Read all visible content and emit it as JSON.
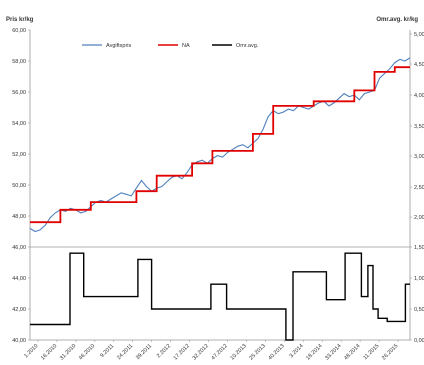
{
  "chart_data": {
    "type": "line",
    "left_axis_title": "Pris kr/kg",
    "right_axis_title": "Omr.avg. kr/kg",
    "legend": {
      "items": [
        {
          "label": "Avgiftspris",
          "color": "#4f81bd"
        },
        {
          "label": "NA",
          "color": "#e00000"
        },
        {
          "label": "Omr.avg.",
          "color": "#000000"
        }
      ],
      "placement": "top"
    },
    "left_ticks_top": [
      "60,00",
      "58,00",
      "56,00",
      "54,00",
      "52,00",
      "50,00",
      "48,00",
      "46,00"
    ],
    "left_ticks_bottom": [
      "44,00",
      "42,00",
      "40,00"
    ],
    "right_ticks": [
      "5,00",
      "4,50",
      "4,00",
      "3,50",
      "3,00",
      "2,50",
      "2,00",
      "1,50",
      "1,00",
      "0,50",
      "0,00"
    ],
    "x_labels": [
      "1.2010",
      "16.2010",
      "31.2010",
      "46.2010",
      "9.2011",
      "24.2011",
      "39.2011",
      "2.2012",
      "17.2012",
      "32.2012",
      "47.2012",
      "10.2013",
      "25.2013",
      "40.2013",
      "3.2014",
      "18.2014",
      "33.2014",
      "48.2014",
      "11.2015",
      "26.2015"
    ],
    "y_top_range": [
      46,
      60
    ],
    "y_bottom_range": [
      40,
      46
    ],
    "price_series": {
      "name": "Avgiftspris",
      "x": [
        0,
        1,
        2,
        3,
        4,
        5,
        6,
        7,
        8,
        9,
        10,
        11,
        12,
        13,
        14,
        15,
        16,
        17,
        18,
        19,
        20,
        21,
        22,
        23,
        24,
        25,
        26,
        27,
        28,
        29,
        30,
        31,
        32,
        33,
        34,
        35,
        36,
        37,
        38,
        39,
        40,
        41,
        42,
        43,
        44,
        45,
        46,
        47,
        48,
        49,
        50,
        51,
        52,
        53,
        54,
        55,
        56,
        57,
        58,
        59,
        60,
        61,
        62,
        63,
        64,
        65,
        66,
        67,
        68,
        69,
        70,
        71,
        72,
        73,
        74,
        75
      ],
      "y": [
        47.2,
        47.0,
        47.1,
        47.4,
        47.9,
        48.2,
        48.4,
        48.3,
        48.5,
        48.4,
        48.2,
        48.3,
        48.6,
        48.9,
        49.0,
        48.9,
        49.1,
        49.3,
        49.5,
        49.4,
        49.3,
        49.8,
        50.3,
        49.9,
        49.6,
        49.8,
        49.9,
        50.2,
        50.5,
        50.6,
        50.4,
        50.8,
        51.3,
        51.5,
        51.6,
        51.4,
        51.7,
        51.9,
        51.8,
        52.1,
        52.3,
        52.5,
        52.6,
        52.4,
        52.7,
        53.0,
        53.6,
        54.4,
        54.8,
        54.6,
        54.7,
        54.9,
        54.8,
        55.1,
        55.0,
        54.9,
        55.1,
        55.3,
        55.4,
        55.1,
        55.3,
        55.6,
        55.9,
        55.7,
        55.8,
        55.5,
        55.9,
        56.0,
        56.1,
        56.9,
        57.2,
        57.5,
        57.9,
        58.1,
        58.0,
        58.2
      ]
    },
    "na_series": {
      "name": "NA",
      "steps": [
        {
          "x0": 0,
          "x1": 6,
          "y": 47.6
        },
        {
          "x0": 6,
          "x1": 12,
          "y": 48.4
        },
        {
          "x0": 12,
          "x1": 21,
          "y": 48.9
        },
        {
          "x0": 21,
          "x1": 25,
          "y": 49.6
        },
        {
          "x0": 25,
          "x1": 32,
          "y": 50.6
        },
        {
          "x0": 32,
          "x1": 36,
          "y": 51.4
        },
        {
          "x0": 36,
          "x1": 44,
          "y": 52.2
        },
        {
          "x0": 44,
          "x1": 48,
          "y": 53.3
        },
        {
          "x0": 48,
          "x1": 56,
          "y": 55.1
        },
        {
          "x0": 56,
          "x1": 64,
          "y": 55.4
        },
        {
          "x0": 64,
          "x1": 68,
          "y": 56.1
        },
        {
          "x0": 68,
          "x1": 72,
          "y": 57.3
        },
        {
          "x0": 72,
          "x1": 75,
          "y": 57.6
        }
      ]
    },
    "avg_series": {
      "name": "Omr.avg.",
      "steps": [
        {
          "x0": 0,
          "x1": 7.9,
          "y": 0.25
        },
        {
          "x0": 7.9,
          "x1": 10.6,
          "y": 1.4
        },
        {
          "x0": 10.6,
          "x1": 21.3,
          "y": 0.7
        },
        {
          "x0": 21.3,
          "x1": 24.0,
          "y": 1.3
        },
        {
          "x0": 24.0,
          "x1": 35.7,
          "y": 0.5
        },
        {
          "x0": 35.7,
          "x1": 38.8,
          "y": 0.9
        },
        {
          "x0": 38.8,
          "x1": 50.5,
          "y": 0.5
        },
        {
          "x0": 50.5,
          "x1": 51.9,
          "y": 0.0
        },
        {
          "x0": 51.9,
          "x1": 52.9,
          "y": 1.1
        },
        {
          "x0": 52.9,
          "x1": 55.7,
          "y": 1.1
        },
        {
          "x0": 55.7,
          "x1": 58.5,
          "y": 1.1
        },
        {
          "x0": 58.5,
          "x1": 62.2,
          "y": 0.65
        },
        {
          "x0": 62.2,
          "x1": 65.4,
          "y": 1.4
        },
        {
          "x0": 65.4,
          "x1": 66.7,
          "y": 0.7
        },
        {
          "x0": 66.7,
          "x1": 67.7,
          "y": 1.2
        },
        {
          "x0": 67.7,
          "x1": 68.7,
          "y": 0.5
        },
        {
          "x0": 68.7,
          "x1": 70.5,
          "y": 0.35
        },
        {
          "x0": 70.5,
          "x1": 74.1,
          "y": 0.3
        },
        {
          "x0": 74.1,
          "x1": 75,
          "y": 0.9
        }
      ]
    }
  }
}
